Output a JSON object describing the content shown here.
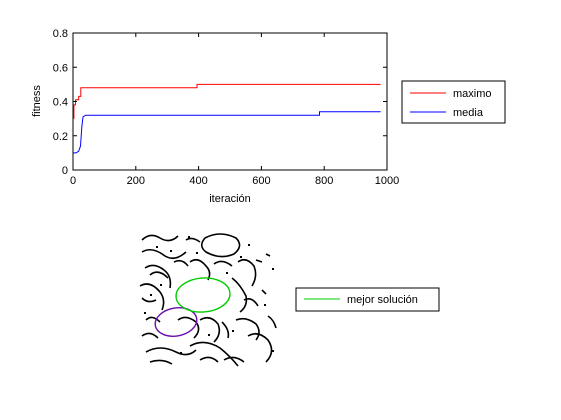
{
  "chart_data": [
    {
      "type": "line",
      "xlabel": "iteración",
      "ylabel": "fitness",
      "xlim": [
        0,
        1000
      ],
      "ylim": [
        0,
        0.8
      ],
      "x_ticks": [
        "0",
        "200",
        "400",
        "600",
        "800",
        "1000"
      ],
      "y_ticks": [
        "0",
        "0.2",
        "0.4",
        "0.6",
        "0.8"
      ],
      "grid": false,
      "legend_position": "right",
      "series": [
        {
          "name": "maximo",
          "color": "#ff0000",
          "points": [
            [
              0,
              0.3
            ],
            [
              3,
              0.3
            ],
            [
              3,
              0.38
            ],
            [
              8,
              0.38
            ],
            [
              8,
              0.41
            ],
            [
              18,
              0.41
            ],
            [
              18,
              0.43
            ],
            [
              25,
              0.43
            ],
            [
              25,
              0.48
            ],
            [
              395,
              0.48
            ],
            [
              395,
              0.5
            ],
            [
              980,
              0.5
            ]
          ]
        },
        {
          "name": "media",
          "color": "#0000ff",
          "points": [
            [
              0,
              0.1
            ],
            [
              10,
              0.1
            ],
            [
              18,
              0.11
            ],
            [
              24,
              0.14
            ],
            [
              28,
              0.25
            ],
            [
              32,
              0.31
            ],
            [
              40,
              0.32
            ],
            [
              180,
              0.32
            ],
            [
              330,
              0.32
            ],
            [
              785,
              0.32
            ],
            [
              785,
              0.34
            ],
            [
              980,
              0.34
            ]
          ]
        }
      ]
    },
    {
      "type": "image",
      "legend_position": "right",
      "series": [
        {
          "name": "mejor solución",
          "color": "#00cc00"
        }
      ]
    }
  ]
}
